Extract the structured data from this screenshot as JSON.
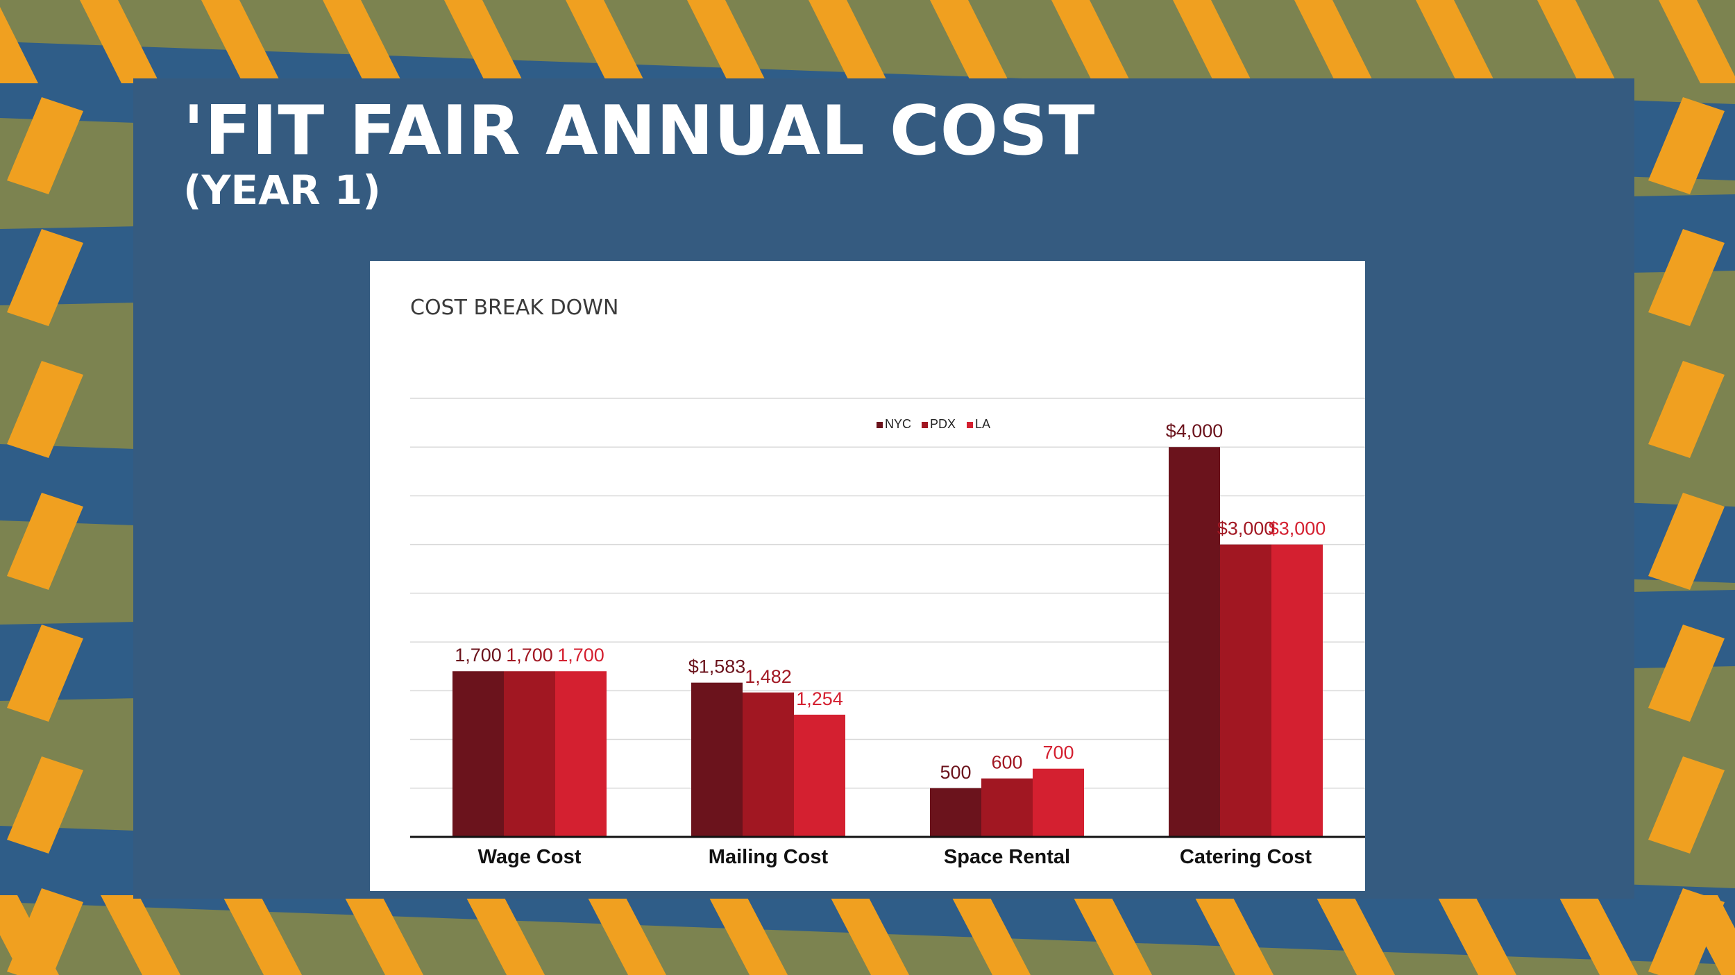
{
  "slide": {
    "title": "'FIT FAIR ANNUAL COST",
    "subtitle": "(YEAR 1)",
    "colors": {
      "panel": "#355b80",
      "stripe_orange": "#f0a020",
      "stripe_olive": "#7c8350",
      "stripe_blue": "#2f5d88"
    }
  },
  "chart_data": {
    "type": "bar",
    "title": "COST BREAK DOWN",
    "categories": [
      "Wage Cost",
      "Mailing Cost",
      "Space Rental",
      "Catering Cost"
    ],
    "series": [
      {
        "name": "NYC",
        "color": "#6b131c",
        "values": [
          1700,
          1583,
          500,
          4000
        ],
        "labels": [
          "1,700",
          "$1,583",
          "500",
          "$4,000"
        ]
      },
      {
        "name": "PDX",
        "color": "#a11722",
        "values": [
          1700,
          1482,
          600,
          3000
        ],
        "labels": [
          "1,700",
          "1,482",
          "600",
          "$3,000"
        ]
      },
      {
        "name": "LA",
        "color": "#d42030",
        "values": [
          1700,
          1254,
          700,
          3000
        ],
        "labels": [
          "1,700",
          "1,254",
          "700",
          "$3,000"
        ]
      }
    ],
    "ylim": [
      0,
      4500
    ],
    "grid": true,
    "legend_position": "top-center"
  }
}
